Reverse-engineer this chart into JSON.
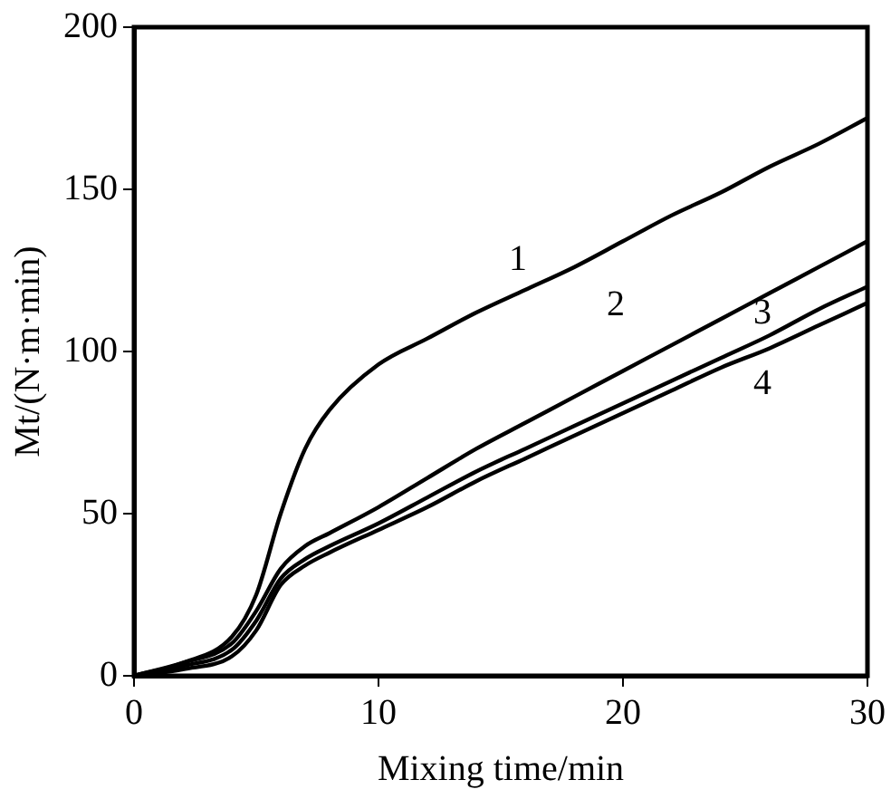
{
  "chart_data": {
    "type": "line",
    "xlabel": "Mixing time/min",
    "ylabel": "Mt/(N·m·min)",
    "xlim": [
      0,
      30
    ],
    "xticks": [
      0,
      10,
      20,
      30
    ],
    "ylim": [
      0,
      200
    ],
    "yticks": [
      0,
      50,
      100,
      150,
      200
    ],
    "grid": false,
    "legend": false,
    "marker": "none",
    "line_style": "solid",
    "x": [
      0,
      2,
      4,
      5,
      6,
      7,
      8,
      10,
      12,
      14,
      16,
      18,
      20,
      22,
      24,
      26,
      28,
      30
    ],
    "series": [
      {
        "name": "1",
        "color": "#000000",
        "values": [
          0,
          4,
          12,
          25,
          50,
          70,
          82,
          96,
          104,
          112,
          119,
          126,
          134,
          142,
          149,
          157,
          164,
          172
        ]
      },
      {
        "name": "2",
        "color": "#000000",
        "values": [
          0,
          4,
          10,
          20,
          33,
          40,
          44,
          52,
          61,
          70,
          78,
          86,
          94,
          102,
          110,
          118,
          126,
          134
        ]
      },
      {
        "name": "3",
        "color": "#000000",
        "values": [
          0,
          3,
          8,
          17,
          30,
          36,
          40,
          47,
          55,
          63,
          70,
          77,
          84,
          91,
          98,
          105,
          113,
          120
        ]
      },
      {
        "name": "4",
        "color": "#000000",
        "values": [
          0,
          2,
          6,
          14,
          28,
          34,
          38,
          45,
          52,
          60,
          67,
          74,
          81,
          88,
          95,
          101,
          108,
          115
        ]
      }
    ]
  }
}
